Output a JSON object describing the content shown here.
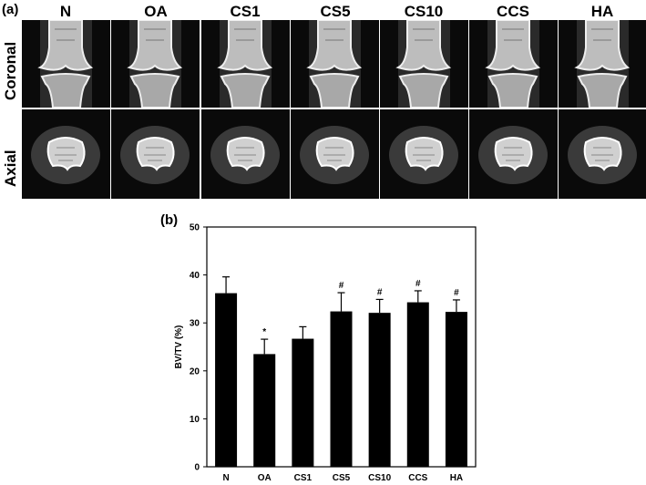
{
  "panel_a": {
    "label": "(a)",
    "groups": [
      "N",
      "OA",
      "CS1",
      "CS5",
      "CS10",
      "CCS",
      "HA"
    ],
    "rows": [
      "Coronal",
      "Axial"
    ],
    "image_description_note": ""
  },
  "panel_b": {
    "label": "(b)"
  },
  "chart_data": {
    "type": "bar",
    "categories": [
      "N",
      "OA",
      "CS1",
      "CS5",
      "CS10",
      "CCS",
      "HA"
    ],
    "values": [
      36.2,
      23.5,
      26.7,
      32.4,
      32.1,
      34.3,
      32.3
    ],
    "errors": [
      3.4,
      3.1,
      2.5,
      3.9,
      2.8,
      2.4,
      2.5
    ],
    "markers": [
      "",
      "*",
      "",
      "#",
      "#",
      "#",
      "#"
    ],
    "xlabel": "",
    "ylabel": "BV/TV (%)",
    "ylim": [
      0,
      50
    ],
    "yticks": [
      0,
      10,
      20,
      30,
      40,
      50
    ],
    "bar_color": "#000000",
    "grid": false,
    "legend": "none"
  }
}
